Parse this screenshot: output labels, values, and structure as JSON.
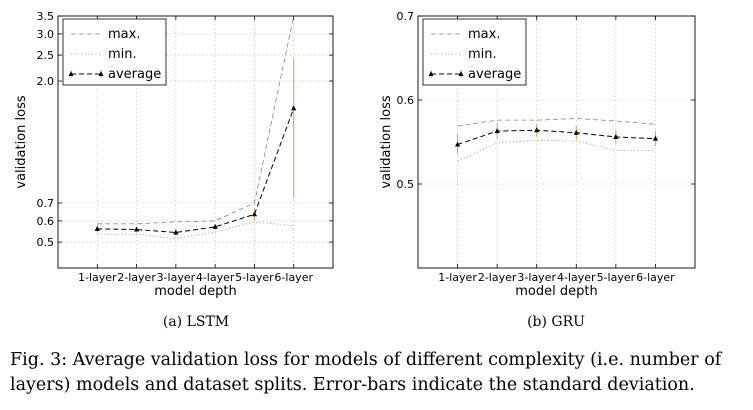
{
  "chart_data": [
    {
      "type": "line",
      "subcaption": "(a) LSTM",
      "xlabel": "model depth",
      "ylabel": "validation loss",
      "categories": [
        "1-layer",
        "2-layer",
        "3-layer",
        "4-layer",
        "5-layer",
        "6-layer"
      ],
      "yscale": "log",
      "ylim": [
        0.4,
        3.5
      ],
      "yticks": [
        "0.5",
        "0.6",
        "0.7",
        "2.0",
        "2.5",
        "3.0",
        "3.5"
      ],
      "grid": true,
      "legend_position": "top-left",
      "series": [
        {
          "name": "max.",
          "values": [
            0.585,
            0.585,
            0.595,
            0.6,
            0.7,
            3.5
          ]
        },
        {
          "name": "min.",
          "values": [
            0.535,
            0.535,
            0.515,
            0.545,
            0.595,
            0.575
          ]
        },
        {
          "name": "average",
          "values": [
            0.56,
            0.557,
            0.543,
            0.57,
            0.635,
            1.58
          ],
          "error": [
            0.015,
            0.01,
            0.015,
            0.012,
            0.03,
            0.85
          ]
        }
      ]
    },
    {
      "type": "line",
      "subcaption": "(b) GRU",
      "xlabel": "model depth",
      "ylabel": "validation loss",
      "categories": [
        "1-layer",
        "2-layer",
        "3-layer",
        "4-layer",
        "5-layer",
        "6-layer"
      ],
      "ylim": [
        0.4,
        0.7
      ],
      "yticks": [
        "0.5",
        "0.6",
        "0.7"
      ],
      "grid": true,
      "legend_position": "top-left",
      "series": [
        {
          "name": "max.",
          "values": [
            0.569,
            0.576,
            0.576,
            0.578,
            0.575,
            0.571
          ]
        },
        {
          "name": "min.",
          "values": [
            0.527,
            0.549,
            0.552,
            0.551,
            0.54,
            0.54
          ]
        },
        {
          "name": "average",
          "values": [
            0.547,
            0.563,
            0.564,
            0.561,
            0.556,
            0.554
          ],
          "error": [
            0.012,
            0.01,
            0.008,
            0.008,
            0.008,
            0.009
          ]
        }
      ]
    }
  ],
  "caption": "Fig. 3: Average validation loss for models of different complexity (i.e. number of layers) models and dataset splits. Error-bars indicate the standard deviation.",
  "colors": {
    "errorbar": "#e8a33c",
    "line": "#000000",
    "grid": "#b8b8b8"
  }
}
